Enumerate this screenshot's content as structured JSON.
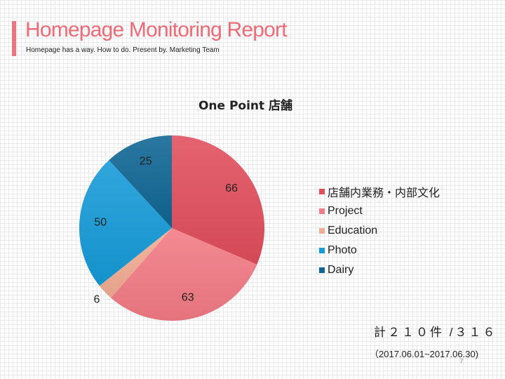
{
  "header": {
    "title": "Homepage Monitoring Report",
    "subtitle": "Homepage has a way. How to do. Present by. Marketing Team"
  },
  "chart_data": {
    "type": "pie",
    "title": "One Point 店舗",
    "categories": [
      "店舗内業務・内部文化",
      "Project",
      "Education",
      "Photo",
      "Dairy"
    ],
    "values": [
      66,
      63,
      6,
      50,
      25
    ],
    "colors": [
      "#e24e5c",
      "#f37a84",
      "#f2ac93",
      "#159ad8",
      "#0e6694"
    ],
    "legend_position": "right",
    "data_labels": true
  },
  "footer": {
    "total": "計２１０件 /３１６",
    "period": "（2017.06.01~2017.06.30)",
    "page_number": "7"
  }
}
